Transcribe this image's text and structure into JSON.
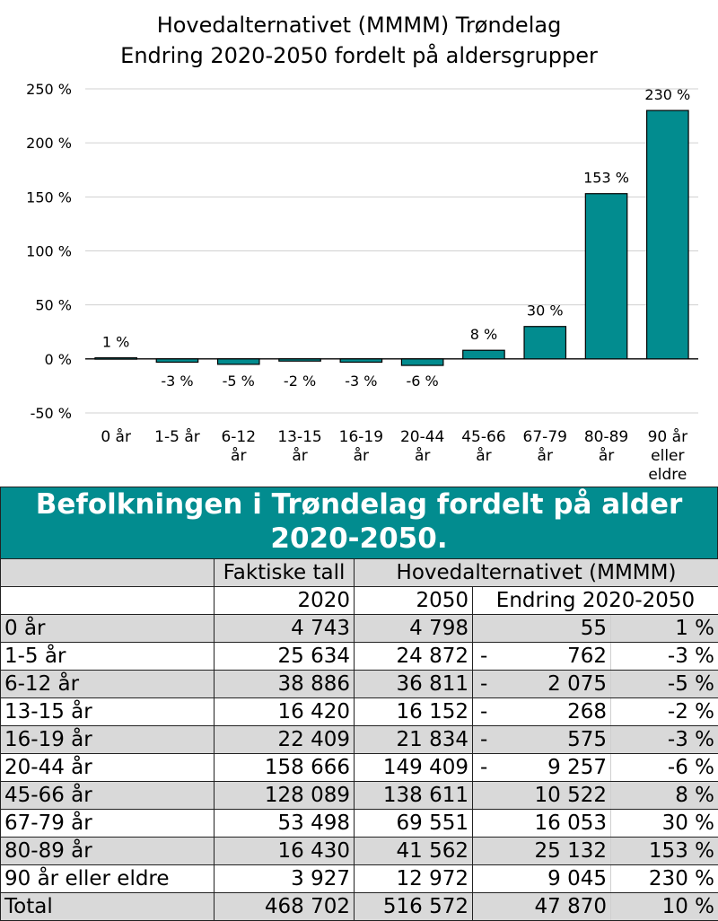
{
  "chart_data": {
    "type": "bar",
    "title": "Hovedalternativet (MMMM) Trøndelag",
    "subtitle": "Endring 2020-2050 fordelt på aldersgrupper",
    "categories": [
      [
        "0 år"
      ],
      [
        "1-5 år"
      ],
      [
        "6-12",
        "år"
      ],
      [
        "13-15",
        "år"
      ],
      [
        "16-19",
        "år"
      ],
      [
        "20-44",
        "år"
      ],
      [
        "45-66",
        "år"
      ],
      [
        "67-79",
        "år"
      ],
      [
        "80-89",
        "år"
      ],
      [
        "90 år",
        "eller",
        "eldre"
      ]
    ],
    "values": [
      1,
      -3,
      -5,
      -2,
      -3,
      -6,
      8,
      30,
      153,
      230
    ],
    "data_labels": [
      "1 %",
      "-3 %",
      "-5 %",
      "-2 %",
      "-3 %",
      "-6 %",
      "8 %",
      "30 %",
      "153 %",
      "230 %"
    ],
    "yticks": [
      250,
      200,
      150,
      100,
      50,
      0,
      -50
    ],
    "ytick_labels": [
      "250 %",
      "200 %",
      "150 %",
      "100 %",
      "50 %",
      "0 %",
      "-50 %"
    ],
    "ylim": [
      -50,
      250
    ],
    "grid": true,
    "bar_color": "#028c8f"
  },
  "table": {
    "title_line1": "Befolkningen i Trøndelag fordelt på alder",
    "title_line2": "2020-2050.",
    "header_color": "#028c8f",
    "header1": {
      "col1": "Faktiske tall",
      "col2": "Hovedalternativet (MMMM)"
    },
    "header2": {
      "col1": "2020",
      "col2": "2050",
      "col3": "Endring 2020-2050"
    },
    "rows": [
      {
        "label": "0 år",
        "y2020": "4 743",
        "y2050": "4 798",
        "sign": "",
        "change": "55",
        "pct": "1 %"
      },
      {
        "label": "1-5 år",
        "y2020": "25 634",
        "y2050": "24 872",
        "sign": "-",
        "change": "762",
        "pct": "-3 %"
      },
      {
        "label": "6-12 år",
        "y2020": "38 886",
        "y2050": "36 811",
        "sign": "-",
        "change": "2 075",
        "pct": "-5 %"
      },
      {
        "label": "13-15 år",
        "y2020": "16 420",
        "y2050": "16 152",
        "sign": "-",
        "change": "268",
        "pct": "-2 %"
      },
      {
        "label": "16-19 år",
        "y2020": "22 409",
        "y2050": "21 834",
        "sign": "-",
        "change": "575",
        "pct": "-3 %"
      },
      {
        "label": "20-44 år",
        "y2020": "158 666",
        "y2050": "149 409",
        "sign": "-",
        "change": "9 257",
        "pct": "-6 %"
      },
      {
        "label": "45-66 år",
        "y2020": "128 089",
        "y2050": "138 611",
        "sign": "",
        "change": "10 522",
        "pct": "8 %"
      },
      {
        "label": "67-79 år",
        "y2020": "53 498",
        "y2050": "69 551",
        "sign": "",
        "change": "16 053",
        "pct": "30 %"
      },
      {
        "label": "80-89 år",
        "y2020": "16 430",
        "y2050": "41 562",
        "sign": "",
        "change": "25 132",
        "pct": "153 %"
      },
      {
        "label": "90 år eller eldre",
        "y2020": "3 927",
        "y2050": "12 972",
        "sign": "",
        "change": "9 045",
        "pct": "230 %"
      }
    ],
    "total": {
      "label": "Total",
      "y2020": "468 702",
      "y2050": "516 572",
      "change": "47 870",
      "pct": "10 %"
    }
  }
}
